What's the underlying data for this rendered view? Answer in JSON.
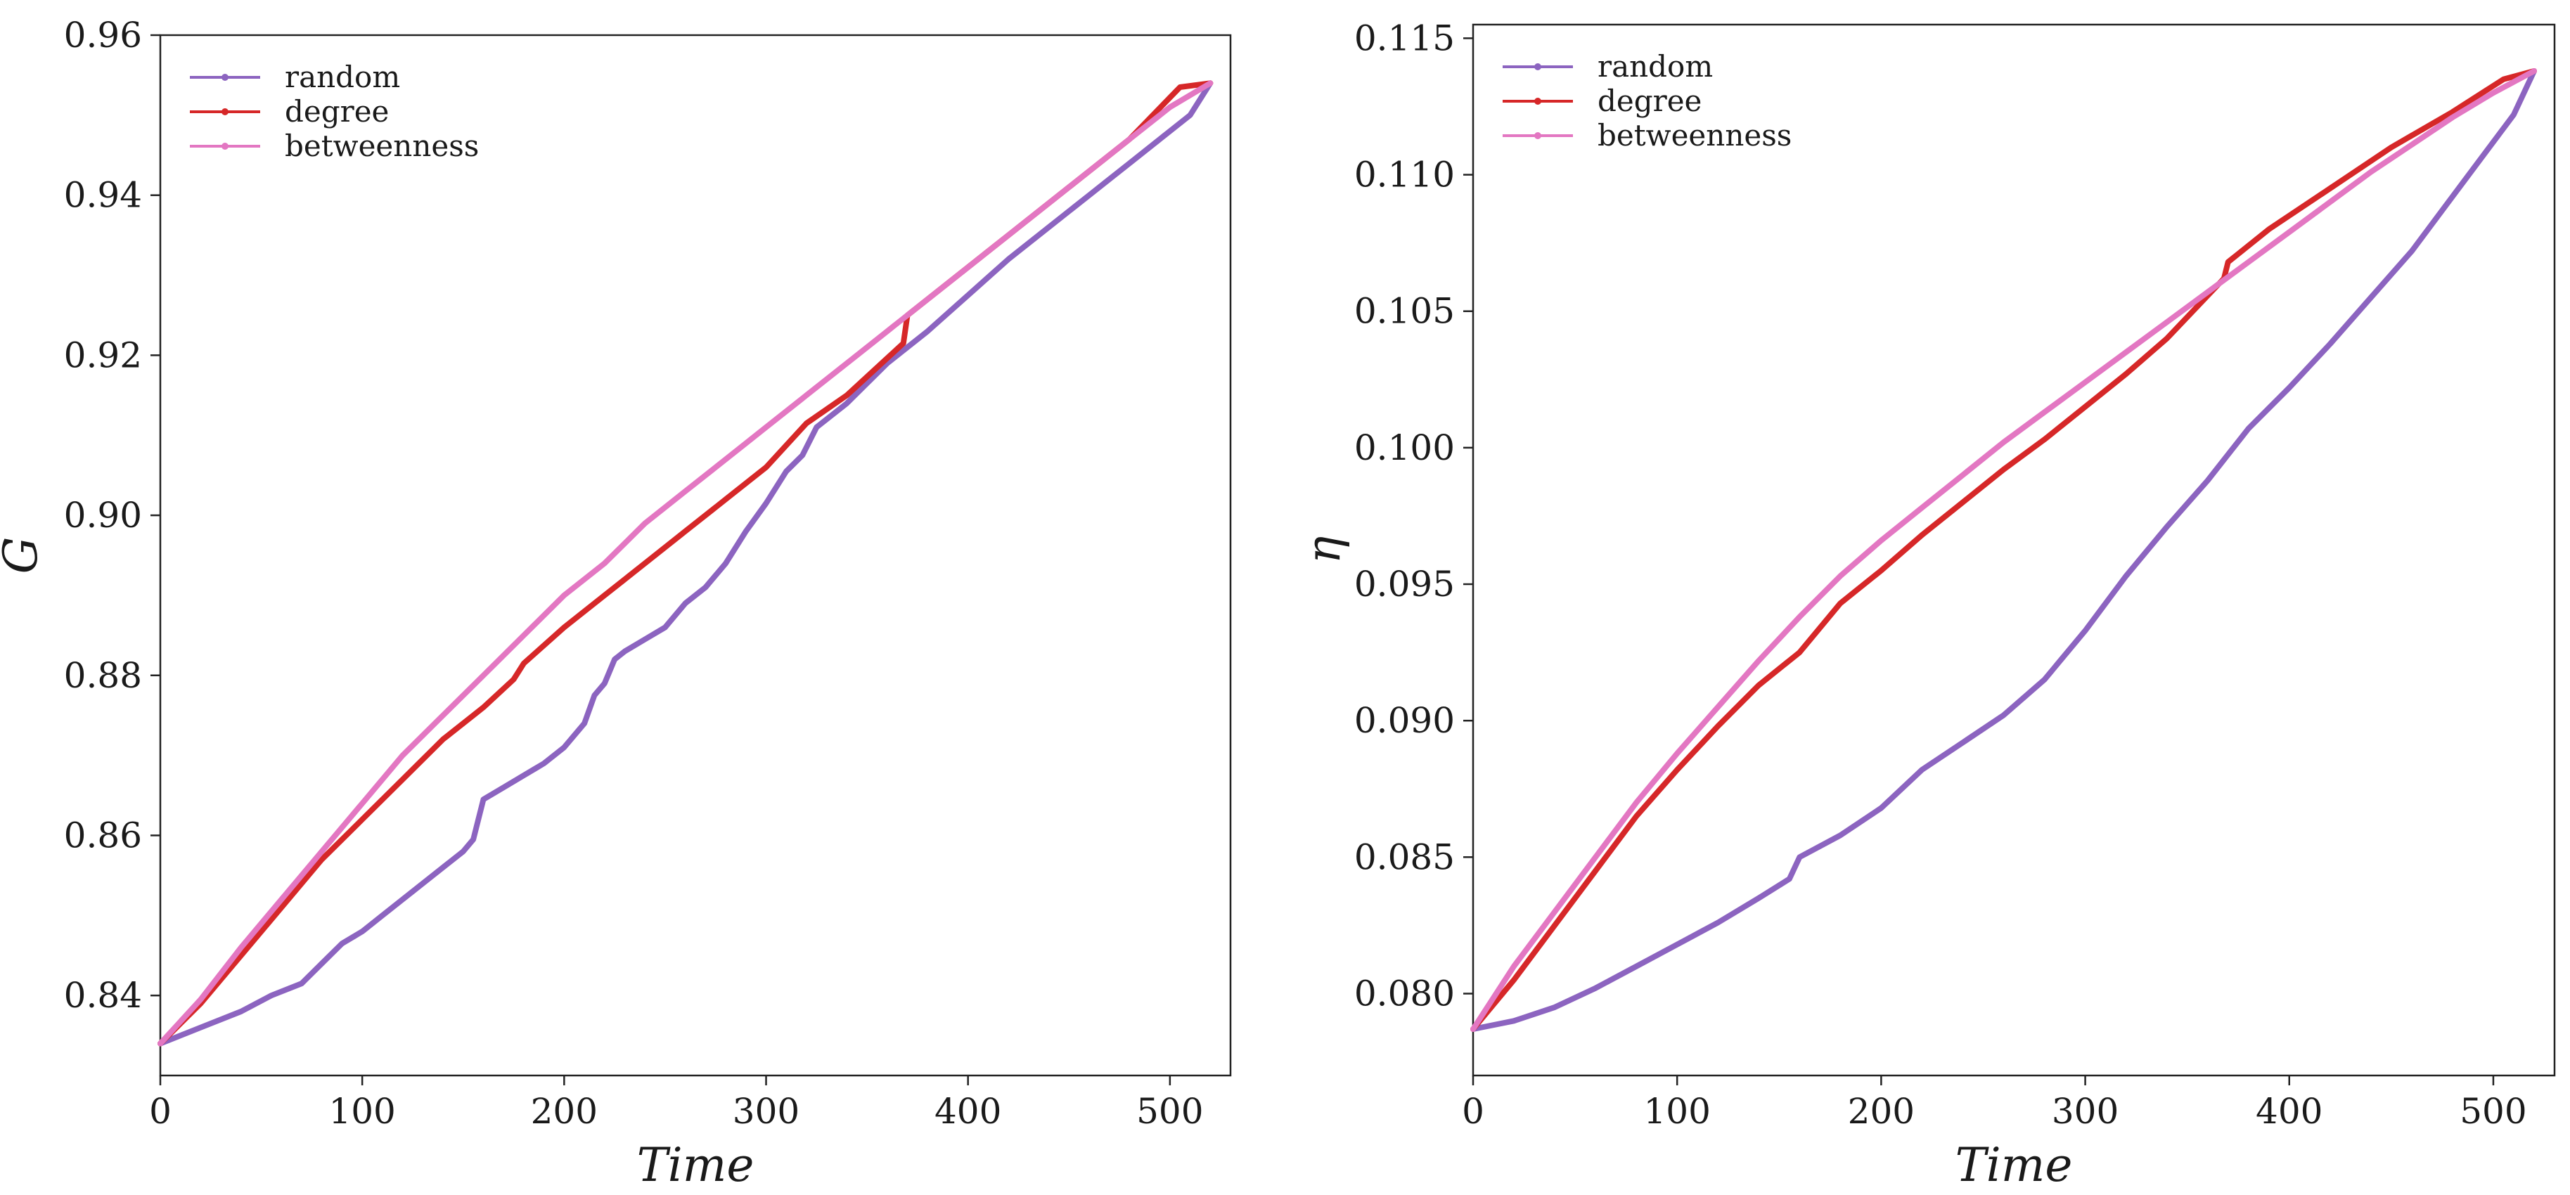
{
  "chart_data": [
    {
      "type": "line",
      "title": "",
      "xlabel": "Time",
      "ylabel": "G",
      "xlim": [
        0,
        530
      ],
      "ylim": [
        0.83,
        0.96
      ],
      "xticks": [
        0,
        100,
        200,
        300,
        400,
        500
      ],
      "yticks": [
        0.84,
        0.86,
        0.88,
        0.9,
        0.92,
        0.94,
        0.96
      ],
      "xtick_labels": [
        "0",
        "100",
        "200",
        "300",
        "400",
        "500"
      ],
      "ytick_labels": [
        "0.84",
        "0.86",
        "0.88",
        "0.90",
        "0.92",
        "0.94",
        "0.96"
      ],
      "legend_position": "top-left",
      "series": [
        {
          "name": "random",
          "color": "#8c64c0",
          "x": [
            0,
            20,
            40,
            55,
            70,
            80,
            90,
            100,
            110,
            120,
            130,
            140,
            150,
            155,
            160,
            170,
            180,
            190,
            200,
            210,
            215,
            220,
            225,
            230,
            240,
            250,
            260,
            270,
            280,
            290,
            300,
            310,
            318,
            325,
            340,
            360,
            380,
            400,
            420,
            440,
            460,
            480,
            500,
            510,
            520
          ],
          "y": [
            0.834,
            0.836,
            0.838,
            0.84,
            0.8415,
            0.844,
            0.8465,
            0.848,
            0.85,
            0.852,
            0.854,
            0.856,
            0.858,
            0.8595,
            0.8645,
            0.866,
            0.8675,
            0.869,
            0.871,
            0.874,
            0.8775,
            0.879,
            0.882,
            0.883,
            0.8845,
            0.886,
            0.889,
            0.891,
            0.894,
            0.898,
            0.9015,
            0.9055,
            0.9075,
            0.911,
            0.914,
            0.919,
            0.923,
            0.9275,
            0.932,
            0.936,
            0.94,
            0.944,
            0.948,
            0.95,
            0.954
          ]
        },
        {
          "name": "degree",
          "color": "#d62728",
          "x": [
            0,
            20,
            40,
            50,
            60,
            80,
            100,
            120,
            140,
            160,
            175,
            180,
            200,
            220,
            240,
            260,
            280,
            300,
            320,
            340,
            368,
            370,
            390,
            420,
            450,
            480,
            505,
            520
          ],
          "y": [
            0.834,
            0.839,
            0.845,
            0.848,
            0.851,
            0.857,
            0.862,
            0.867,
            0.872,
            0.876,
            0.8795,
            0.8815,
            0.886,
            0.89,
            0.894,
            0.898,
            0.902,
            0.906,
            0.9115,
            0.915,
            0.9215,
            0.925,
            0.929,
            0.935,
            0.941,
            0.947,
            0.9535,
            0.954
          ]
        },
        {
          "name": "betweenness",
          "color": "#e377c2",
          "x": [
            0,
            20,
            40,
            60,
            80,
            100,
            120,
            140,
            160,
            180,
            200,
            220,
            240,
            260,
            280,
            300,
            320,
            340,
            360,
            380,
            400,
            420,
            440,
            460,
            480,
            500,
            520
          ],
          "y": [
            0.834,
            0.8395,
            0.846,
            0.852,
            0.858,
            0.864,
            0.87,
            0.875,
            0.88,
            0.885,
            0.89,
            0.894,
            0.899,
            0.903,
            0.907,
            0.911,
            0.915,
            0.919,
            0.923,
            0.927,
            0.931,
            0.935,
            0.939,
            0.943,
            0.947,
            0.951,
            0.954
          ]
        }
      ]
    },
    {
      "type": "line",
      "title": "",
      "xlabel": "Time",
      "ylabel": "η",
      "xlim": [
        0,
        530
      ],
      "ylim": [
        0.077,
        0.1155
      ],
      "xticks": [
        0,
        100,
        200,
        300,
        400,
        500
      ],
      "yticks": [
        0.08,
        0.085,
        0.09,
        0.095,
        0.1,
        0.105,
        0.11,
        0.115
      ],
      "xtick_labels": [
        "0",
        "100",
        "200",
        "300",
        "400",
        "500"
      ],
      "ytick_labels": [
        "0.080",
        "0.085",
        "0.090",
        "0.095",
        "0.100",
        "0.105",
        "0.110",
        "0.115"
      ],
      "legend_position": "top-left",
      "series": [
        {
          "name": "random",
          "color": "#8c64c0",
          "x": [
            0,
            20,
            40,
            60,
            80,
            100,
            120,
            140,
            155,
            160,
            180,
            200,
            220,
            240,
            260,
            280,
            300,
            320,
            340,
            360,
            380,
            400,
            420,
            440,
            460,
            480,
            500,
            510,
            520
          ],
          "y": [
            0.0787,
            0.079,
            0.0795,
            0.0802,
            0.081,
            0.0818,
            0.0826,
            0.0835,
            0.0842,
            0.085,
            0.0858,
            0.0868,
            0.0882,
            0.0892,
            0.0902,
            0.0915,
            0.0933,
            0.0953,
            0.0971,
            0.0988,
            0.1007,
            0.1022,
            0.1038,
            0.1055,
            0.1072,
            0.1092,
            0.1112,
            0.1122,
            0.1138
          ]
        },
        {
          "name": "degree",
          "color": "#d62728",
          "x": [
            0,
            20,
            40,
            60,
            80,
            100,
            120,
            140,
            160,
            180,
            200,
            220,
            240,
            260,
            280,
            300,
            320,
            340,
            368,
            370,
            390,
            420,
            450,
            480,
            505,
            520
          ],
          "y": [
            0.0787,
            0.0805,
            0.0825,
            0.0845,
            0.0865,
            0.0882,
            0.0898,
            0.0913,
            0.0925,
            0.0943,
            0.0955,
            0.0968,
            0.098,
            0.0992,
            0.1003,
            0.1015,
            0.1027,
            0.104,
            0.1062,
            0.1068,
            0.108,
            0.1095,
            0.111,
            0.1123,
            0.1135,
            0.1138
          ]
        },
        {
          "name": "betweenness",
          "color": "#e377c2",
          "x": [
            0,
            20,
            40,
            60,
            80,
            100,
            120,
            140,
            160,
            180,
            200,
            220,
            240,
            260,
            280,
            300,
            320,
            340,
            360,
            380,
            400,
            420,
            440,
            460,
            480,
            500,
            520
          ],
          "y": [
            0.0787,
            0.081,
            0.083,
            0.085,
            0.087,
            0.0888,
            0.0905,
            0.0922,
            0.0938,
            0.0953,
            0.0966,
            0.0978,
            0.099,
            0.1002,
            0.1013,
            0.1024,
            0.1035,
            0.1046,
            0.1057,
            0.1068,
            0.1079,
            0.109,
            0.1101,
            0.1111,
            0.1121,
            0.113,
            0.1138
          ]
        }
      ]
    }
  ]
}
